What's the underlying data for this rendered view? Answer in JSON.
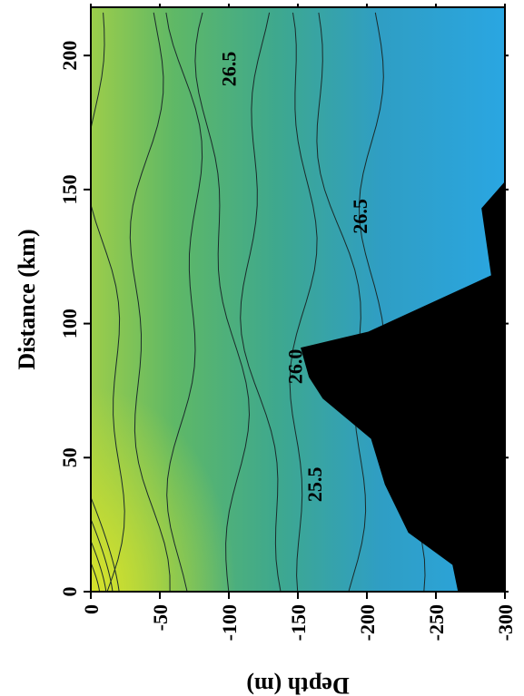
{
  "chart_data": {
    "type": "heatmap",
    "title": "",
    "xlabel": "Depth (m)",
    "ylabel": "Distance (km)",
    "x_ticks": [
      "0",
      "-50",
      "-100",
      "-150",
      "-200",
      "-250",
      "-300"
    ],
    "x_tick_values": [
      0,
      -50,
      -100,
      -150,
      -200,
      -250,
      -300
    ],
    "y_ticks": [
      "0",
      "50",
      "100",
      "150",
      "200"
    ],
    "y_tick_values": [
      0,
      50,
      100,
      150,
      200
    ],
    "xlim": [
      0,
      -300
    ],
    "ylim": [
      0,
      218
    ],
    "orientation": "rotated-90",
    "colors": {
      "shallow": "#c8e032",
      "mid": "#3fb08a",
      "deep": "#2aa6e0",
      "bathymetry": "#000000",
      "contour_line": "#1a2a2a"
    },
    "contour_labels": [
      {
        "text": "25.5",
        "depth": -167,
        "distance": 40
      },
      {
        "text": "26.0",
        "depth": -153,
        "distance": 84
      },
      {
        "text": "26.5",
        "depth": -200,
        "distance": 140
      },
      {
        "text": "26.5",
        "depth": -105,
        "distance": 195
      }
    ],
    "bathymetry_profile": [
      {
        "distance": 0,
        "depth": -266
      },
      {
        "distance": 10,
        "depth": -262
      },
      {
        "distance": 22,
        "depth": -230
      },
      {
        "distance": 40,
        "depth": -213
      },
      {
        "distance": 57,
        "depth": -203
      },
      {
        "distance": 72,
        "depth": -168
      },
      {
        "distance": 80,
        "depth": -158
      },
      {
        "distance": 91,
        "depth": -152
      },
      {
        "distance": 97,
        "depth": -201
      },
      {
        "distance": 118,
        "depth": -290
      },
      {
        "distance": 143,
        "depth": -283
      },
      {
        "distance": 153,
        "depth": -300
      }
    ]
  }
}
